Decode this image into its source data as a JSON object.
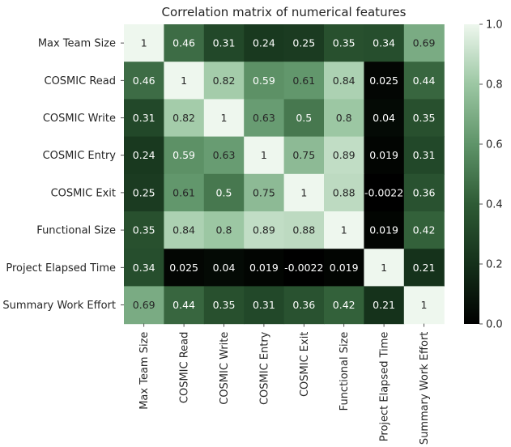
{
  "chart_data": {
    "type": "heatmap",
    "title": "Correlation matrix of numerical features",
    "row_labels": [
      "Max Team Size",
      "COSMIC Read",
      "COSMIC Write",
      "COSMIC Entry",
      "COSMIC Exit",
      "Functional Size",
      "Project Elapsed Time",
      "Summary Work Effort"
    ],
    "col_labels": [
      "Max Team Size",
      "COSMIC Read",
      "COSMIC Write",
      "COSMIC Entry",
      "COSMIC Exit",
      "Functional Size",
      "Project Elapsed Time",
      "Summary Work Effort"
    ],
    "values": [
      [
        1,
        0.46,
        0.31,
        0.24,
        0.25,
        0.35,
        0.34,
        0.69
      ],
      [
        0.46,
        1,
        0.82,
        0.59,
        0.61,
        0.84,
        0.025,
        0.44
      ],
      [
        0.31,
        0.82,
        1,
        0.63,
        0.5,
        0.8,
        0.04,
        0.35
      ],
      [
        0.24,
        0.59,
        0.63,
        1,
        0.75,
        0.89,
        0.019,
        0.31
      ],
      [
        0.25,
        0.61,
        0.5,
        0.75,
        1,
        0.88,
        -0.0022,
        0.36
      ],
      [
        0.35,
        0.84,
        0.8,
        0.89,
        0.88,
        1,
        0.019,
        0.42
      ],
      [
        0.34,
        0.025,
        0.04,
        0.019,
        -0.0022,
        0.019,
        1,
        0.21
      ],
      [
        0.69,
        0.44,
        0.35,
        0.31,
        0.36,
        0.42,
        0.21,
        1
      ]
    ],
    "value_labels": [
      [
        "1",
        "0.46",
        "0.31",
        "0.24",
        "0.25",
        "0.35",
        "0.34",
        "0.69"
      ],
      [
        "0.46",
        "1",
        "0.82",
        "0.59",
        "0.61",
        "0.84",
        "0.025",
        "0.44"
      ],
      [
        "0.31",
        "0.82",
        "1",
        "0.63",
        "0.5",
        "0.8",
        "0.04",
        "0.35"
      ],
      [
        "0.24",
        "0.59",
        "0.63",
        "1",
        "0.75",
        "0.89",
        "0.019",
        "0.31"
      ],
      [
        "0.25",
        "0.61",
        "0.5",
        "0.75",
        "1",
        "0.88",
        "-0.0022",
        "0.36"
      ],
      [
        "0.35",
        "0.84",
        "0.8",
        "0.89",
        "0.88",
        "1",
        "0.019",
        "0.42"
      ],
      [
        "0.34",
        "0.025",
        "0.04",
        "0.019",
        "-0.0022",
        "0.019",
        "1",
        "0.21"
      ],
      [
        "0.69",
        "0.44",
        "0.35",
        "0.31",
        "0.36",
        "0.42",
        "0.21",
        "1"
      ]
    ],
    "colorbar": {
      "range": [
        0,
        1
      ],
      "ticks": [
        0.0,
        0.2,
        0.4,
        0.6,
        0.8,
        1.0
      ],
      "tick_labels": [
        "0.0",
        "0.2",
        "0.4",
        "0.6",
        "0.8",
        "1.0"
      ],
      "colors": [
        "#000000",
        "#14301a",
        "#2e5b35",
        "#5f9469",
        "#9cc7a3",
        "#eef7ee"
      ]
    }
  }
}
